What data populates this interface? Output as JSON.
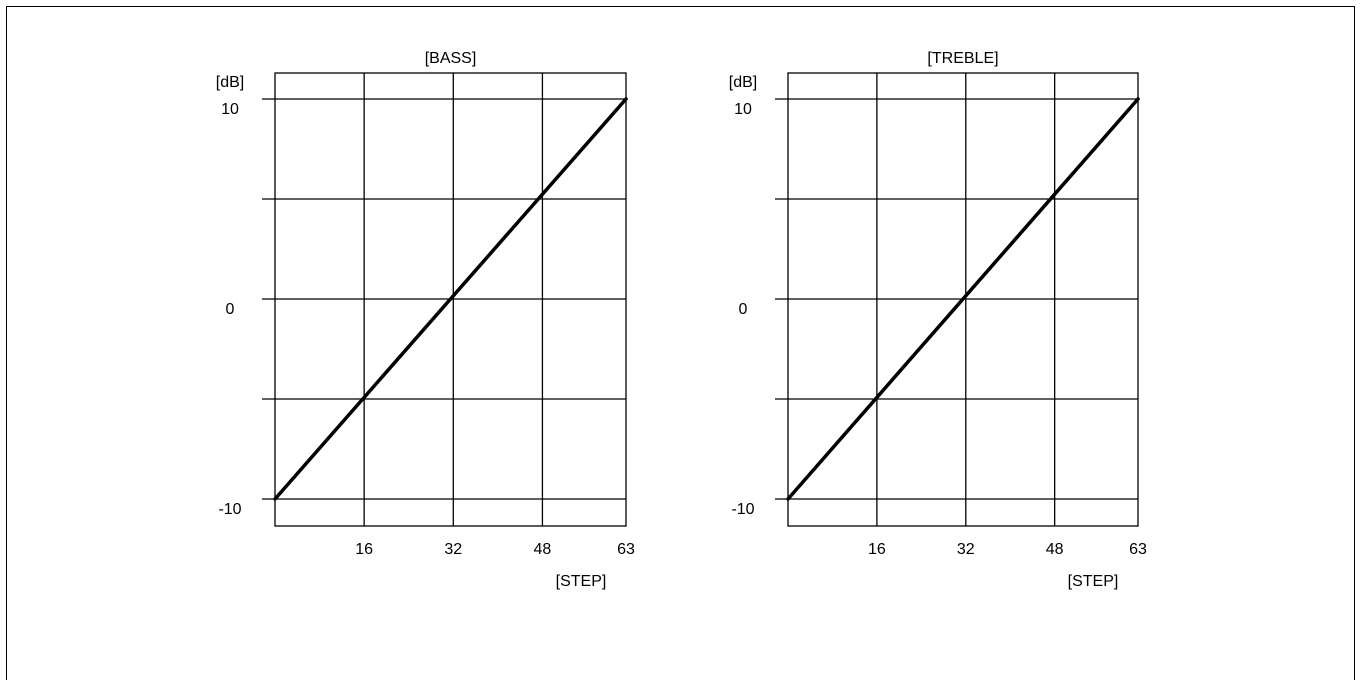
{
  "colors": {
    "line": "#000000",
    "grid": "#000000",
    "background": "#ffffff"
  },
  "chart_data": [
    {
      "type": "line",
      "title": "[BASS]",
      "xlabel": "[STEP]",
      "ylabel": "[dB]",
      "xlim": [
        0,
        63
      ],
      "ylim": [
        -10,
        10
      ],
      "x_ticks": [
        16,
        32,
        48,
        63
      ],
      "y_tick_labels": [
        10,
        0,
        -10
      ],
      "y_grid": [
        -10,
        -5,
        0,
        5,
        10
      ],
      "grid": true,
      "series": [
        {
          "x": [
            0,
            63
          ],
          "y": [
            -10,
            10
          ]
        }
      ]
    },
    {
      "type": "line",
      "title": "[TREBLE]",
      "xlabel": "[STEP]",
      "ylabel": "[dB]",
      "xlim": [
        0,
        63
      ],
      "ylim": [
        -10,
        10
      ],
      "x_ticks": [
        16,
        32,
        48,
        63
      ],
      "y_tick_labels": [
        10,
        0,
        -10
      ],
      "y_grid": [
        -10,
        -5,
        0,
        5,
        10
      ],
      "grid": true,
      "series": [
        {
          "x": [
            0,
            63
          ],
          "y": [
            -10,
            10
          ]
        }
      ]
    }
  ]
}
